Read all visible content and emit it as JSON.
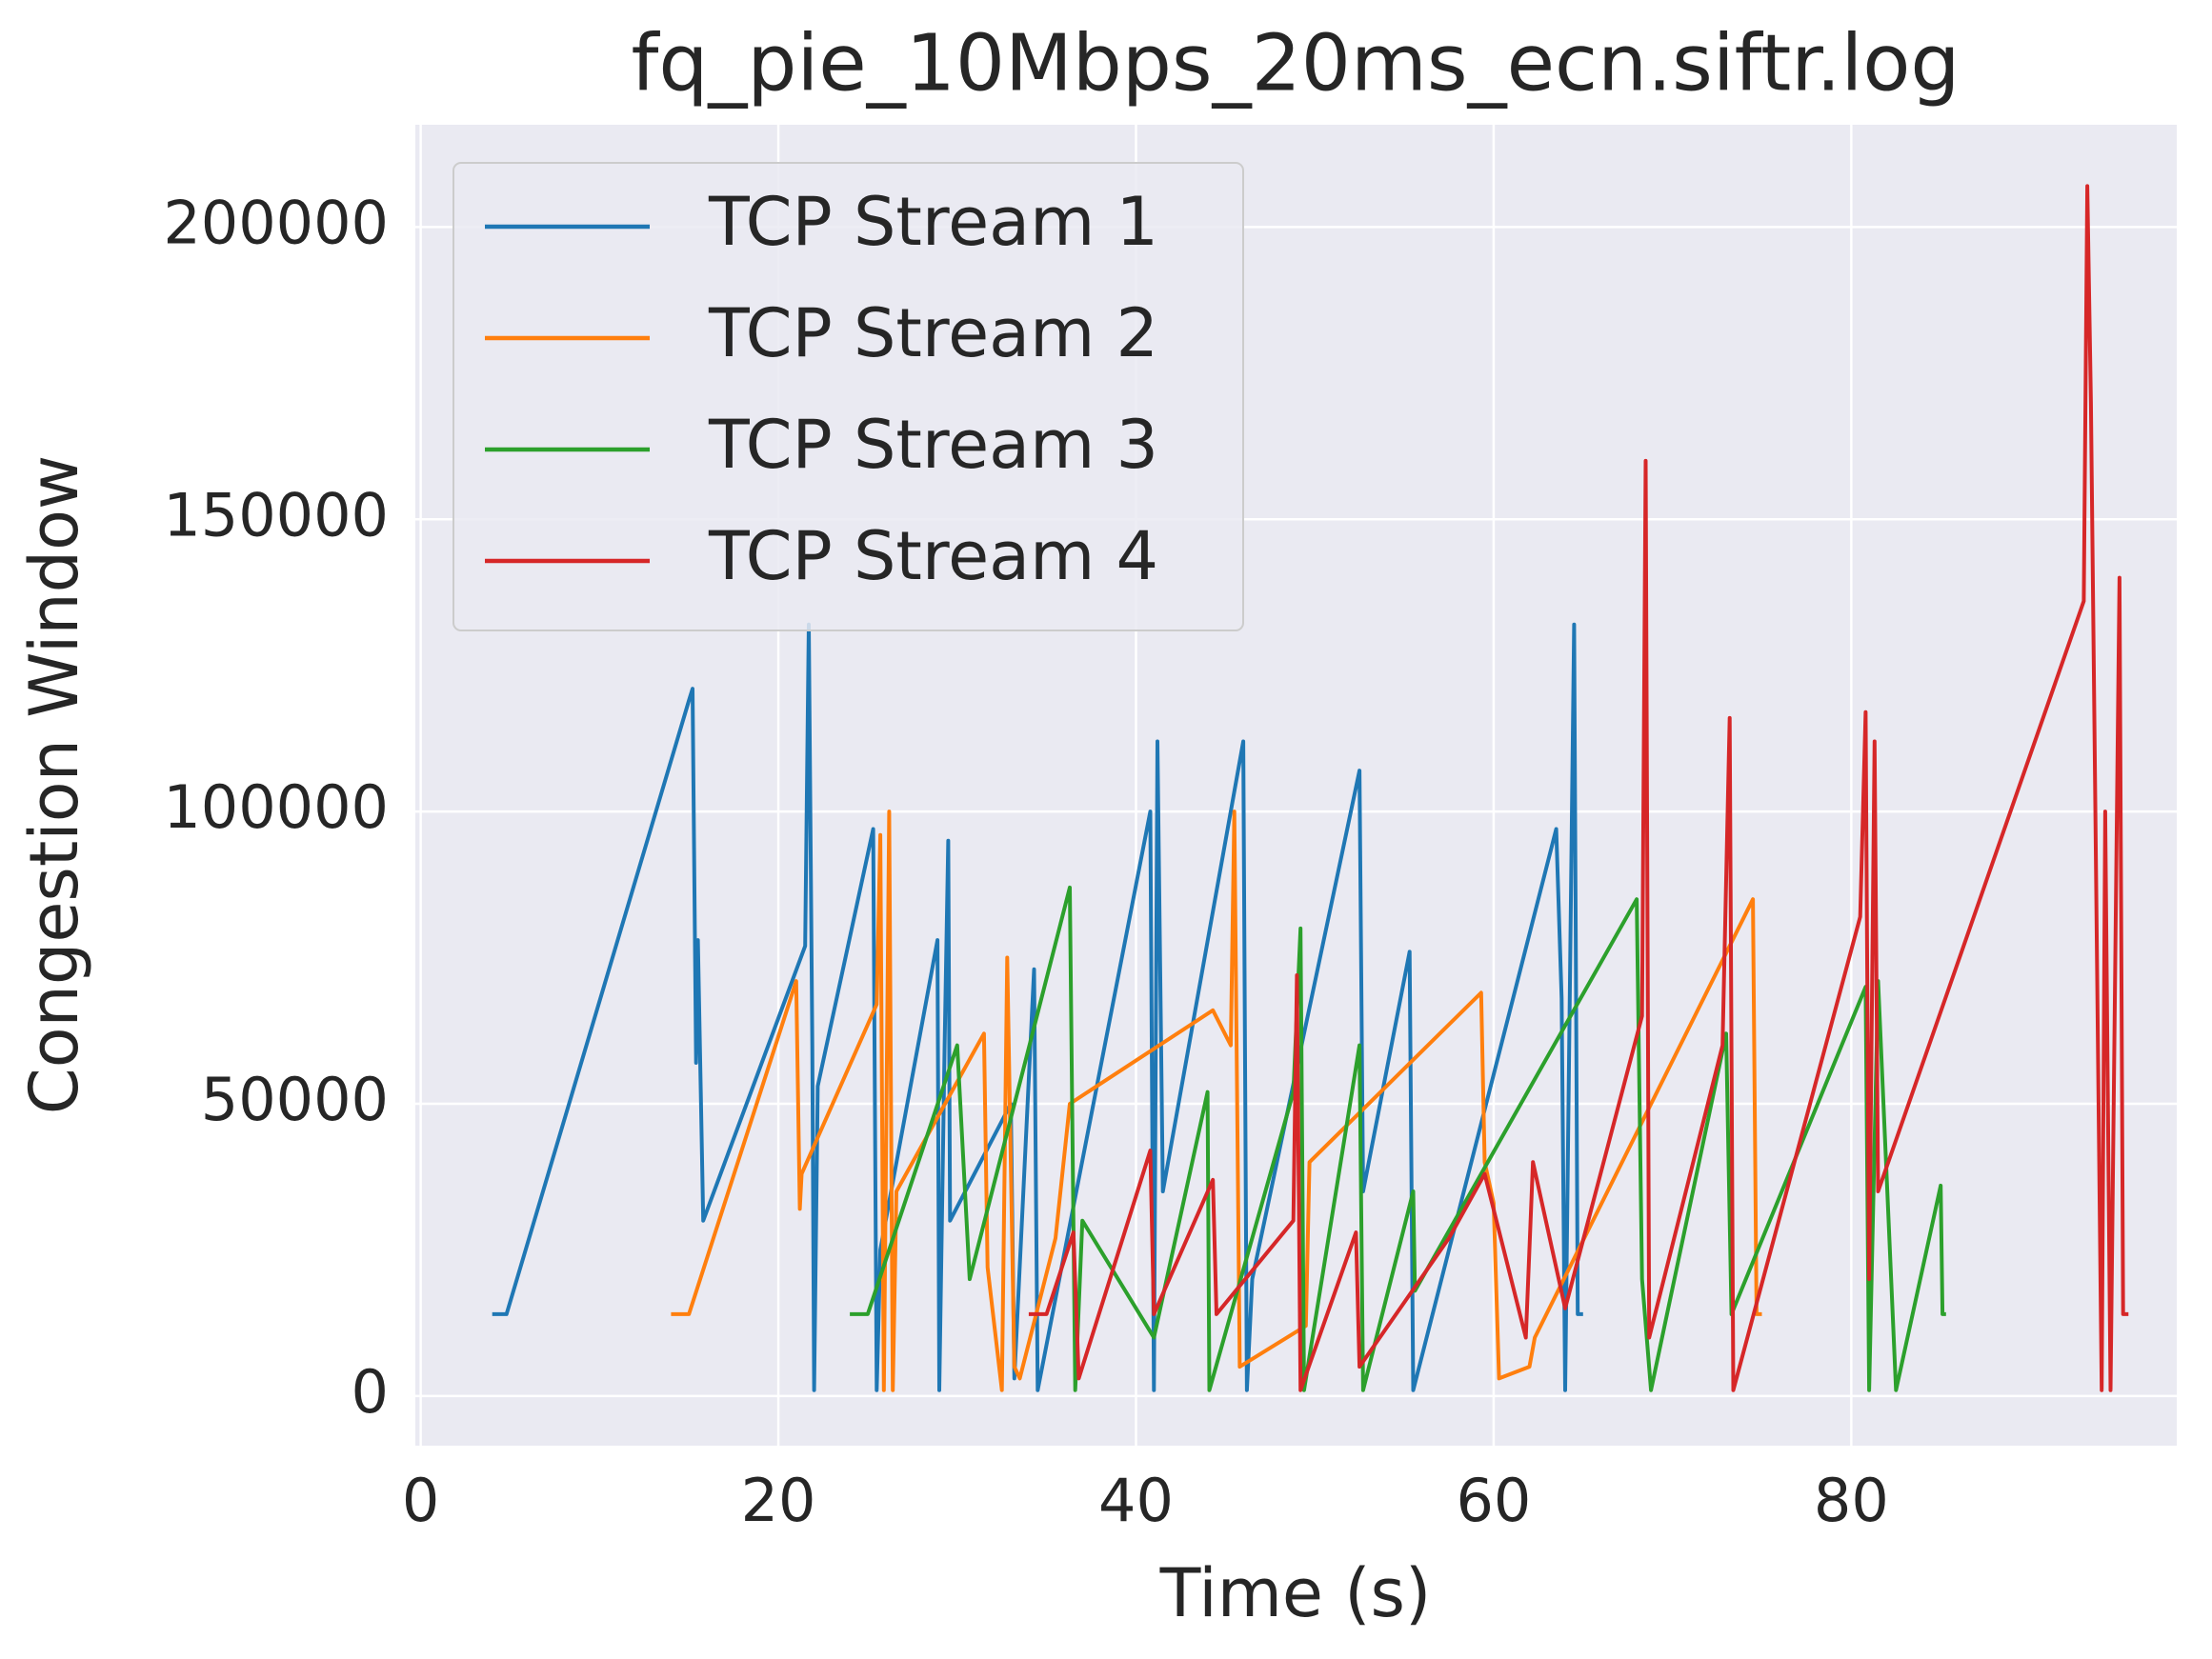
{
  "chart_data": {
    "type": "line",
    "title": "fq_pie_10Mbps_20ms_ecn.siftr.log",
    "xlabel": "Time (s)",
    "ylabel": "Congestion Window",
    "xlim": [
      -0.3,
      98.2
    ],
    "ylim": [
      -8500,
      217500
    ],
    "xticks": [
      0,
      20,
      40,
      60,
      80
    ],
    "yticks": [
      0,
      50000,
      100000,
      150000,
      200000
    ],
    "grid": true,
    "legend": "upper left",
    "series": [
      {
        "name": "TCP Stream 1",
        "color": "#1f77b4",
        "x": [
          4,
          4.8,
          15,
          15.2,
          15.4,
          15.5,
          15.8,
          21.5,
          21.7,
          21.9,
          22.0,
          22.2,
          25.3,
          25.5,
          25.7,
          28.9,
          29.0,
          29.3,
          29.5,
          29.6,
          33.0,
          33.2,
          34.3,
          34.5,
          40.8,
          41.0,
          41.2,
          41.5,
          46.0,
          46.2,
          46.5,
          52.5,
          52.7,
          55.3,
          55.5,
          63.5,
          63.8,
          64.0,
          64.5,
          64.7,
          65
        ],
        "values": [
          14000,
          14000,
          119000,
          121000,
          57000,
          78000,
          30000,
          77000,
          132000,
          60000,
          1000,
          53000,
          97000,
          1000,
          25000,
          78000,
          1000,
          60000,
          95000,
          30000,
          50000,
          3000,
          73000,
          1000,
          100000,
          1000,
          112000,
          35000,
          112000,
          1000,
          20000,
          107000,
          35000,
          76000,
          1000,
          97000,
          68000,
          1000,
          132000,
          14000,
          14000
        ]
      },
      {
        "name": "TCP Stream 2",
        "color": "#ff7f0e",
        "x": [
          14,
          15,
          21,
          21.2,
          21.3,
          25.5,
          25.7,
          25.9,
          26.2,
          26.4,
          26.6,
          31.5,
          31.7,
          32.5,
          32.8,
          33.2,
          33.5,
          35.5,
          36.3,
          44.3,
          45.3,
          45.5,
          45.8,
          49.5,
          49.7,
          59.3,
          59.5,
          60.0,
          60.3,
          62.0,
          62.3,
          74.5,
          74.7,
          75
        ],
        "values": [
          14000,
          14000,
          71000,
          32000,
          38000,
          67000,
          96000,
          1000,
          100000,
          1000,
          35000,
          62000,
          22000,
          1000,
          75000,
          5000,
          3000,
          27000,
          50000,
          66000,
          60000,
          100000,
          5000,
          12000,
          40000,
          69000,
          40000,
          33000,
          3000,
          5000,
          10000,
          85000,
          14000,
          14000
        ]
      },
      {
        "name": "TCP Stream 3",
        "color": "#2ca02c",
        "x": [
          24,
          25,
          30,
          30.7,
          36.3,
          36.6,
          37,
          41.0,
          44,
          44.1,
          48.8,
          49.2,
          49.4,
          52.5,
          52.7,
          55.5,
          55.6,
          68,
          68.3,
          68.8,
          73,
          73.3,
          80.8,
          81,
          81.5,
          82.5,
          85,
          85.1,
          85.3
        ],
        "values": [
          14000,
          14000,
          60000,
          20000,
          87000,
          1000,
          30000,
          10000,
          52000,
          1000,
          52000,
          80000,
          1000,
          60000,
          1000,
          35000,
          18000,
          85000,
          20000,
          1000,
          62000,
          14000,
          70000,
          1000,
          71000,
          1000,
          36000,
          14000,
          14000
        ]
      },
      {
        "name": "TCP Stream 4",
        "color": "#d62728",
        "x": [
          34,
          35,
          36.5,
          36.8,
          40.8,
          41,
          44.3,
          44.5,
          48.8,
          49,
          49.2,
          52.3,
          52.5,
          57.5,
          59.5,
          61.8,
          62.2,
          64.0,
          68.3,
          68.5,
          68.7,
          72.8,
          73.2,
          73.4,
          80.5,
          80.8,
          81.0,
          81.3,
          81.5,
          93,
          93.2,
          93.4,
          94,
          94.2,
          94.5,
          95,
          95.2,
          95.5
        ],
        "values": [
          14000,
          14000,
          28000,
          3000,
          42000,
          14000,
          37000,
          14000,
          30000,
          72000,
          1000,
          28000,
          5000,
          27000,
          38000,
          10000,
          40000,
          15000,
          65000,
          160000,
          10000,
          60000,
          116000,
          1000,
          82000,
          117000,
          20000,
          112000,
          35000,
          136000,
          207000,
          170000,
          1000,
          100000,
          1000,
          140000,
          14000,
          14000
        ]
      }
    ]
  }
}
